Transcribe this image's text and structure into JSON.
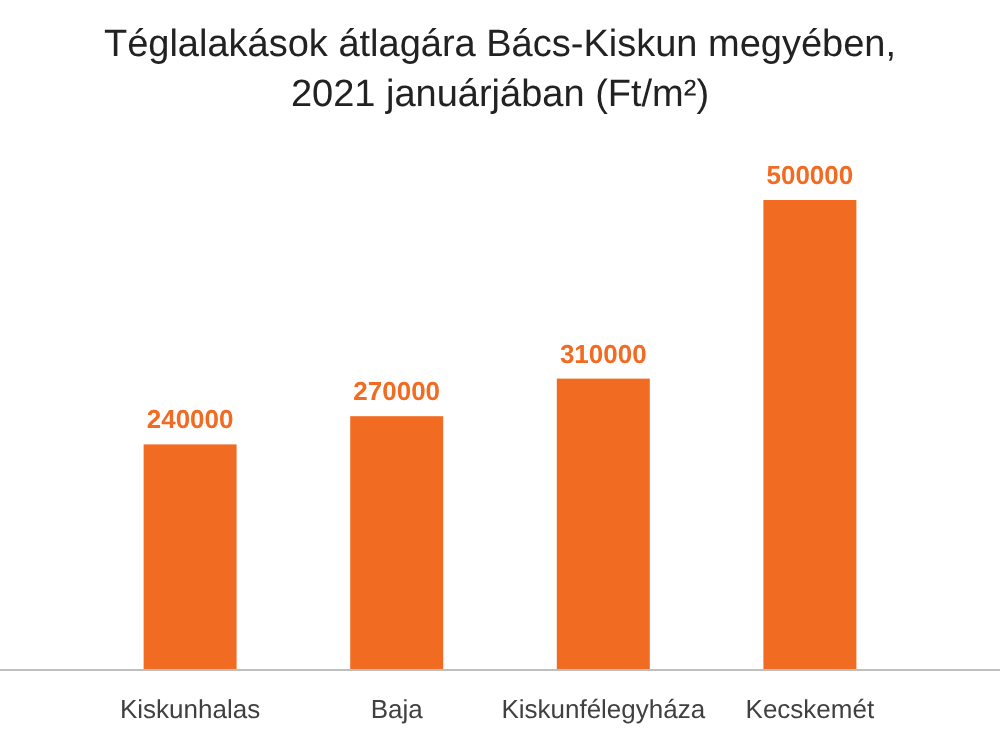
{
  "chart_data": {
    "type": "bar",
    "title": "Téglalakások átlagára Bács-Kiskun megyében, 2021 januárjában (Ft/m²)",
    "categories": [
      "Kiskunhalas",
      "Baja",
      "Kiskunfélegyháza",
      "Kecskemét"
    ],
    "values": [
      240000,
      270000,
      310000,
      500000
    ],
    "color": "#f26b22",
    "data_labels": true
  }
}
